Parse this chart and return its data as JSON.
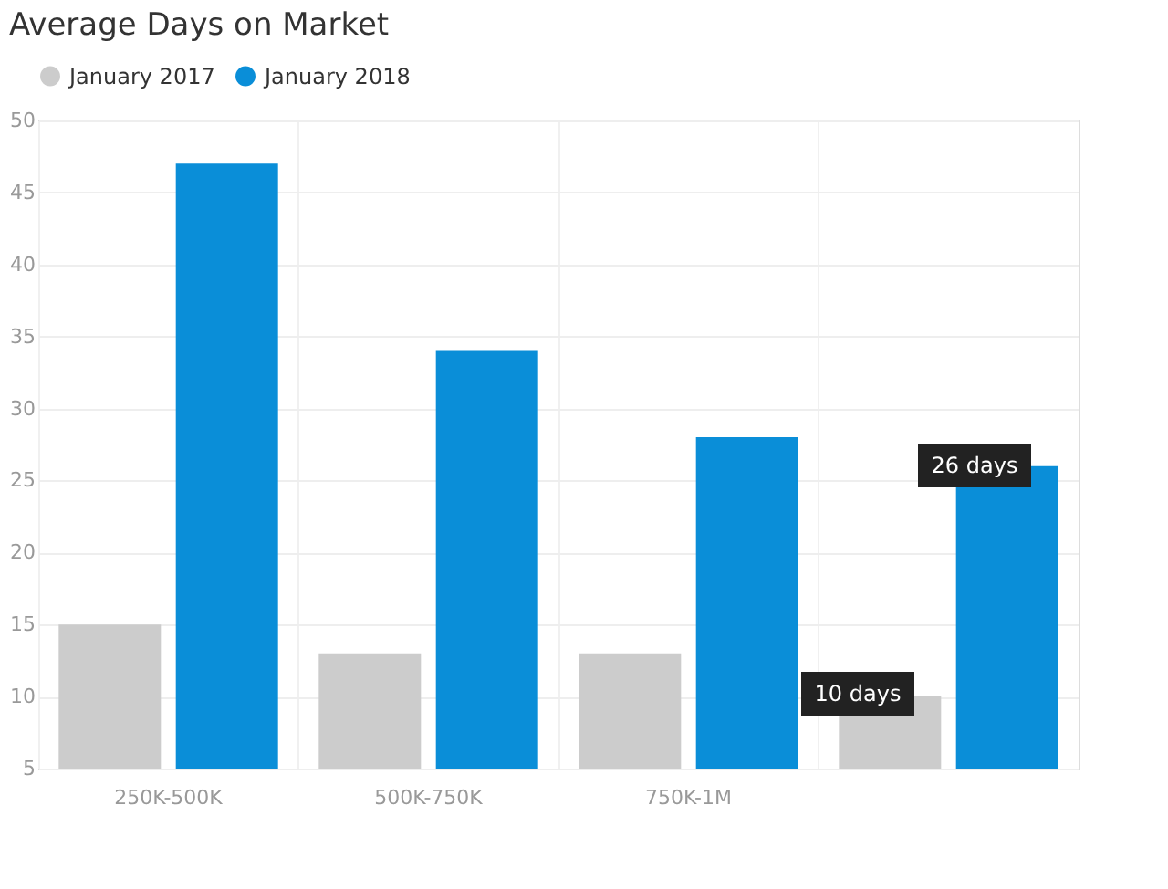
{
  "chart_data": {
    "type": "bar",
    "title": "Average Days on Market",
    "categories": [
      "250K-500K",
      "500K-750K",
      "750K-1M",
      null
    ],
    "series": [
      {
        "name": "January 2017",
        "color": "#cccccc",
        "values": [
          15,
          13,
          13,
          10
        ]
      },
      {
        "name": "January 2018",
        "color": "#0a8ed8",
        "values": [
          47,
          34,
          28,
          26
        ]
      }
    ],
    "ylim": [
      5,
      50
    ],
    "yticks": [
      5,
      10,
      15,
      20,
      25,
      30,
      35,
      40,
      45,
      50
    ],
    "grid": true,
    "legend": "top left",
    "annotations": [
      "26 days",
      "10 days"
    ]
  }
}
